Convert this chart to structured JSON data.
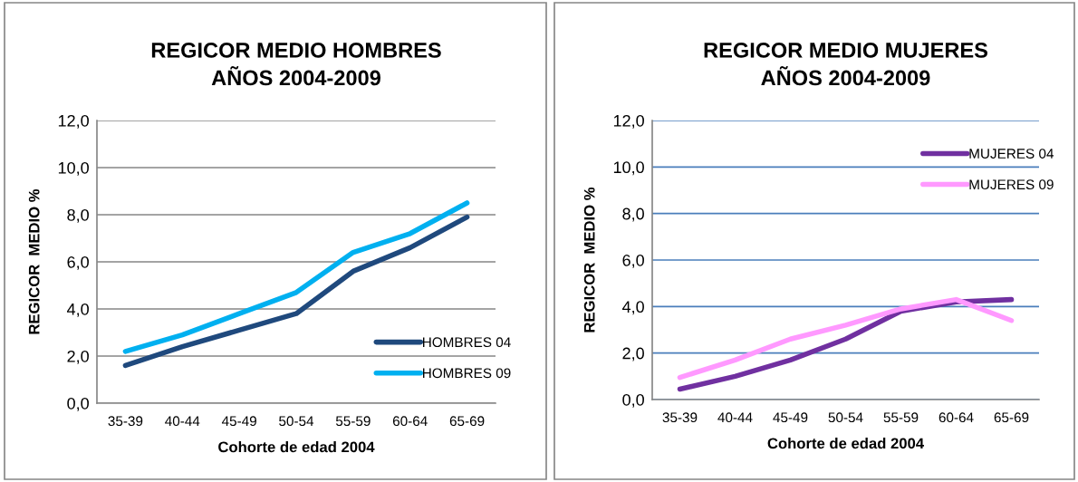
{
  "chart_data": [
    {
      "type": "line",
      "title": "REGICOR MEDIO HOMBRES\nAÑOS 2004-2009",
      "xlabel": "Cohorte de edad 2004",
      "ylabel": "REGICOR  MEDIO %",
      "categories": [
        "35-39",
        "40-44",
        "45-49",
        "50-54",
        "55-59",
        "60-64",
        "65-69"
      ],
      "series": [
        {
          "name": "HOMBRES 04",
          "color": "#1f497d",
          "values": [
            1.6,
            2.4,
            3.1,
            3.8,
            5.6,
            6.6,
            7.9
          ]
        },
        {
          "name": "HOMBRES 09",
          "color": "#00b0f0",
          "values": [
            2.2,
            2.9,
            3.8,
            4.7,
            6.4,
            7.2,
            8.5
          ]
        }
      ],
      "ylim": [
        0,
        12
      ],
      "yticks": [
        {
          "value": 0,
          "label": "0,0"
        },
        {
          "value": 2,
          "label": "2,0"
        },
        {
          "value": 4,
          "label": "4,0"
        },
        {
          "value": 6,
          "label": "6,0"
        },
        {
          "value": 8,
          "label": "8,0"
        },
        {
          "value": 10,
          "label": "10,0"
        },
        {
          "value": 12,
          "label": "12,0"
        }
      ],
      "grid": "y",
      "legend": "bottom right"
    },
    {
      "type": "line",
      "title": "REGICOR MEDIO MUJERES\nAÑOS 2004-2009",
      "xlabel": "Cohorte de edad 2004",
      "ylabel": "REGICOR  MEDIO %",
      "categories": [
        "35-39",
        "40-44",
        "45-49",
        "50-54",
        "55-59",
        "60-64",
        "65-69"
      ],
      "series": [
        {
          "name": "MUJERES 04",
          "color": "#7030a0",
          "values": [
            0.45,
            1.0,
            1.7,
            2.6,
            3.8,
            4.2,
            4.3
          ]
        },
        {
          "name": "MUJERES 09",
          "color": "#ff99ff",
          "values": [
            0.95,
            1.7,
            2.6,
            3.2,
            3.9,
            4.3,
            3.4
          ]
        }
      ],
      "ylim": [
        0,
        12
      ],
      "yticks": [
        {
          "value": 0,
          "label": "0,0"
        },
        {
          "value": 2,
          "label": "2,0"
        },
        {
          "value": 4,
          "label": "4,0"
        },
        {
          "value": 6,
          "label": "6,0"
        },
        {
          "value": 8,
          "label": "8,0"
        },
        {
          "value": 10,
          "label": "10,0"
        },
        {
          "value": 12,
          "label": "12,0"
        }
      ],
      "grid": "y",
      "legend": "top right"
    }
  ]
}
